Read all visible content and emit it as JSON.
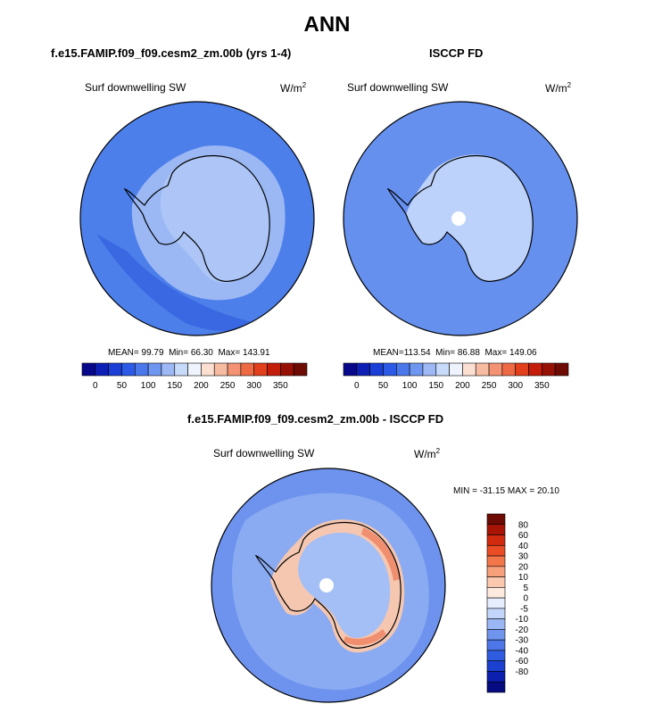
{
  "page_title": "ANN",
  "panels": [
    {
      "title": "f.e15.FAMIP.f09_f09.cesm2_zm.00b (yrs 1-4)",
      "variable": "Surf downwelling SW",
      "units_base": "W/m",
      "units_exp": "2",
      "stats": {
        "mean_label": "MEAN=",
        "mean": "99.79",
        "min_label": "Min=",
        "min": "66.30",
        "max_label": "Max=",
        "max": "143.91"
      }
    },
    {
      "title": "ISCCP FD",
      "variable": "Surf downwelling SW",
      "units_base": "W/m",
      "units_exp": "2",
      "stats": {
        "mean_label": "MEAN=",
        "mean": "113.54",
        "min_label": "Min=",
        "min": "86.88",
        "max_label": "Max=",
        "max": "149.06"
      }
    },
    {
      "title": "f.e15.FAMIP.f09_f09.cesm2_zm.00b - ISCCP FD",
      "variable": "Surf downwelling SW",
      "units_base": "W/m",
      "units_exp": "2",
      "stats": {
        "min_label": "MIN =",
        "min": "-31.15",
        "max_label": "MAX =",
        "max": "20.10"
      }
    }
  ],
  "colorbar_abs": {
    "colors": [
      "#08088a",
      "#0d1fb5",
      "#1b3ed6",
      "#2c5ae6",
      "#4a78ec",
      "#6f96f0",
      "#9db8f5",
      "#c8dafa",
      "#eef3fd",
      "#fbe0d2",
      "#f7bba1",
      "#f39373",
      "#ee6a44",
      "#e23f1c",
      "#c41d0a",
      "#961006",
      "#6e0b04"
    ],
    "tick_labels": [
      "0",
      "50",
      "100",
      "150",
      "200",
      "250",
      "300",
      "350"
    ]
  },
  "colorbar_diff": {
    "colors": [
      "#6e0b04",
      "#a81406",
      "#d22a0e",
      "#ea4d24",
      "#f3764b",
      "#f7a07c",
      "#fac8ae",
      "#fdebdf",
      "#e6eefd",
      "#c3d5fa",
      "#9ab7f4",
      "#6f94ee",
      "#4d77e9",
      "#2f5ce0",
      "#1c40cf",
      "#0c1fae",
      "#050b80"
    ],
    "tick_labels": [
      "80",
      "60",
      "40",
      "30",
      "20",
      "10",
      "5",
      "0",
      "-5",
      "-10",
      "-20",
      "-30",
      "-40",
      "-60",
      "-80"
    ]
  },
  "colors": {
    "ocean_model": "#4d7fea",
    "ocean_model_dark": "#3a68e2",
    "ice_model": "#9bb8f4",
    "ice_model_inner": "#adc6f7",
    "ocean_obs": "#6590ee",
    "ice_obs": "#bcd2fa",
    "diff_ocean": "#6d93ee",
    "diff_mid": "#a3bff5",
    "diff_warm": "#f6c7b0",
    "diff_hot": "#ef8f70",
    "coastline": "#000000"
  }
}
